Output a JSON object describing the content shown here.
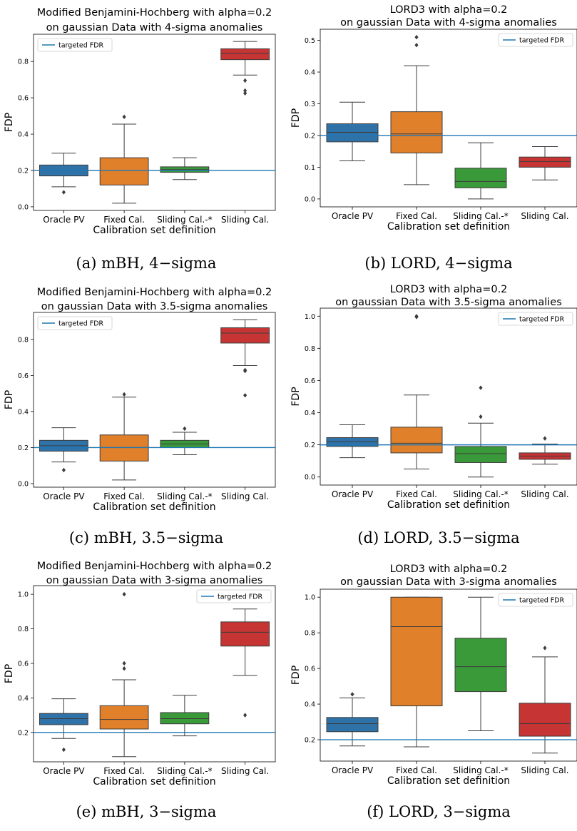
{
  "figure": {
    "panel_captions": [
      "(a) mBH, 4−sigma",
      "(b) LORD, 4−sigma",
      "(c) mBH, 3.5−sigma",
      "(d) LORD, 3.5−sigma",
      "(e) mBH, 3−sigma",
      "(f) LORD, 3−sigma"
    ]
  },
  "colors": {
    "Oracle PV": "#2f72a8",
    "Fixed Cal.": "#e0802b",
    "Sliding Cal.-*": "#3a9a3a",
    "Sliding Cal.": "#c63434",
    "target_line": "#1f77b4",
    "box_edge": "#3c3c3c"
  },
  "chart_data": [
    {
      "type": "box",
      "title": [
        "Modified Benjamini-Hochberg with alpha=0.2",
        "on gaussian Data with 4-sigma anomalies"
      ],
      "xlabel": "Calibration set definition",
      "ylabel": "FDP",
      "categories": [
        "Oracle PV",
        "Fixed Cal.",
        "Sliding Cal.-*",
        "Sliding Cal."
      ],
      "ylim": [
        -0.02,
        0.95
      ],
      "yticks": [
        0.0,
        0.2,
        0.4,
        0.6,
        0.8
      ],
      "ytick_labels": [
        "0.0",
        "0.2",
        "0.4",
        "0.6",
        "0.8"
      ],
      "reference_line": 0.2,
      "legend": {
        "label": "targeted FDR",
        "position": "top-left"
      },
      "boxes": [
        {
          "whislo": 0.11,
          "q1": 0.17,
          "med": 0.2,
          "q3": 0.23,
          "whishi": 0.295,
          "fliers": [
            0.08
          ]
        },
        {
          "whislo": 0.02,
          "q1": 0.12,
          "med": 0.2,
          "q3": 0.27,
          "whishi": 0.455,
          "fliers": [
            0.495
          ]
        },
        {
          "whislo": 0.15,
          "q1": 0.19,
          "med": 0.205,
          "q3": 0.22,
          "whishi": 0.27,
          "fliers": []
        },
        {
          "whislo": 0.725,
          "q1": 0.81,
          "med": 0.845,
          "q3": 0.87,
          "whishi": 0.91,
          "fliers": [
            0.695,
            0.64,
            0.625
          ]
        }
      ]
    },
    {
      "type": "box",
      "title": [
        "LORD3 with alpha=0.2",
        "on gaussian Data with 4-sigma anomalies"
      ],
      "xlabel": "Calibration set definition",
      "ylabel": "FDP",
      "categories": [
        "Oracle PV",
        "Fixed Cal.",
        "Sliding Cal.-*",
        "Sliding Cal."
      ],
      "ylim": [
        -0.025,
        0.535
      ],
      "yticks": [
        0.0,
        0.1,
        0.2,
        0.3,
        0.4,
        0.5
      ],
      "ytick_labels": [
        "0.0",
        "0.1",
        "0.2",
        "0.3",
        "0.4",
        "0.5"
      ],
      "reference_line": 0.2,
      "legend": {
        "label": "targeted FDR",
        "position": "top-right"
      },
      "boxes": [
        {
          "whislo": 0.12,
          "q1": 0.18,
          "med": 0.21,
          "q3": 0.237,
          "whishi": 0.305,
          "fliers": []
        },
        {
          "whislo": 0.045,
          "q1": 0.145,
          "med": 0.205,
          "q3": 0.275,
          "whishi": 0.42,
          "fliers": [
            0.485,
            0.51
          ]
        },
        {
          "whislo": 0.0,
          "q1": 0.035,
          "med": 0.055,
          "q3": 0.097,
          "whishi": 0.177,
          "fliers": []
        },
        {
          "whislo": 0.06,
          "q1": 0.1,
          "med": 0.118,
          "q3": 0.132,
          "whishi": 0.165,
          "fliers": []
        }
      ]
    },
    {
      "type": "box",
      "title": [
        "Modified Benjamini-Hochberg with alpha=0.2",
        "on gaussian Data with 3.5-sigma anomalies"
      ],
      "xlabel": "Calibration set definition",
      "ylabel": "FDP",
      "categories": [
        "Oracle PV",
        "Fixed Cal.",
        "Sliding Cal.-*",
        "Sliding Cal."
      ],
      "ylim": [
        -0.02,
        0.95
      ],
      "yticks": [
        0.0,
        0.2,
        0.4,
        0.6,
        0.8
      ],
      "ytick_labels": [
        "0.0",
        "0.2",
        "0.4",
        "0.6",
        "0.8"
      ],
      "reference_line": 0.2,
      "legend": {
        "label": "targeted FDR",
        "position": "top-left"
      },
      "boxes": [
        {
          "whislo": 0.12,
          "q1": 0.18,
          "med": 0.21,
          "q3": 0.24,
          "whishi": 0.31,
          "fliers": [
            0.075
          ]
        },
        {
          "whislo": 0.02,
          "q1": 0.125,
          "med": 0.2,
          "q3": 0.27,
          "whishi": 0.48,
          "fliers": [
            0.495
          ]
        },
        {
          "whislo": 0.16,
          "q1": 0.2,
          "med": 0.22,
          "q3": 0.24,
          "whishi": 0.285,
          "fliers": [
            0.305
          ]
        },
        {
          "whislo": 0.655,
          "q1": 0.78,
          "med": 0.835,
          "q3": 0.865,
          "whishi": 0.91,
          "fliers": [
            0.63,
            0.625,
            0.49
          ]
        }
      ]
    },
    {
      "type": "box",
      "title": [
        "LORD3 with alpha=0.2",
        "on gaussian Data with 3.5-sigma anomalies"
      ],
      "xlabel": "Calibration set definition",
      "ylabel": "FDP",
      "categories": [
        "Oracle PV",
        "Fixed Cal.",
        "Sliding Cal.-*",
        "Sliding Cal."
      ],
      "ylim": [
        -0.05,
        1.05
      ],
      "yticks": [
        0.0,
        0.2,
        0.4,
        0.6,
        0.8,
        1.0
      ],
      "ytick_labels": [
        "0.0",
        "0.2",
        "0.4",
        "0.6",
        "0.8",
        "1.0"
      ],
      "reference_line": 0.2,
      "legend": {
        "label": "targeted FDR",
        "position": "top-right"
      },
      "boxes": [
        {
          "whislo": 0.12,
          "q1": 0.19,
          "med": 0.22,
          "q3": 0.245,
          "whishi": 0.325,
          "fliers": []
        },
        {
          "whislo": 0.05,
          "q1": 0.15,
          "med": 0.21,
          "q3": 0.31,
          "whishi": 0.51,
          "fliers": [
            0.995,
            1.0
          ]
        },
        {
          "whislo": 0.0,
          "q1": 0.09,
          "med": 0.145,
          "q3": 0.19,
          "whishi": 0.335,
          "fliers": [
            0.375,
            0.555
          ]
        },
        {
          "whislo": 0.08,
          "q1": 0.11,
          "med": 0.13,
          "q3": 0.15,
          "whishi": 0.205,
          "fliers": [
            0.24
          ]
        }
      ]
    },
    {
      "type": "box",
      "title": [
        "Modified Benjamini-Hochberg with alpha=0.2",
        "on gaussian Data with 3-sigma anomalies"
      ],
      "xlabel": "Calibration set definition",
      "ylabel": "FDP",
      "categories": [
        "Oracle PV",
        "Fixed Cal.",
        "Sliding Cal.-*",
        "Sliding Cal."
      ],
      "ylim": [
        0.03,
        1.05
      ],
      "yticks": [
        0.2,
        0.4,
        0.6,
        0.8,
        1.0
      ],
      "ytick_labels": [
        "0.2",
        "0.4",
        "0.6",
        "0.8",
        "1.0"
      ],
      "reference_line": 0.2,
      "legend": {
        "label": "targeted FDR",
        "position": "top-right"
      },
      "boxes": [
        {
          "whislo": 0.165,
          "q1": 0.245,
          "med": 0.28,
          "q3": 0.31,
          "whishi": 0.395,
          "fliers": [
            0.1
          ]
        },
        {
          "whislo": 0.06,
          "q1": 0.22,
          "med": 0.275,
          "q3": 0.355,
          "whishi": 0.505,
          "fliers": [
            0.57,
            0.6,
            1.0
          ]
        },
        {
          "whislo": 0.18,
          "q1": 0.25,
          "med": 0.28,
          "q3": 0.315,
          "whishi": 0.415,
          "fliers": []
        },
        {
          "whislo": 0.53,
          "q1": 0.7,
          "med": 0.78,
          "q3": 0.84,
          "whishi": 0.915,
          "fliers": [
            0.3
          ]
        }
      ]
    },
    {
      "type": "box",
      "title": [
        "LORD3 with alpha=0.2",
        "on gaussian Data with 3-sigma anomalies"
      ],
      "xlabel": "Calibration set definition",
      "ylabel": "FDP",
      "categories": [
        "Oracle PV",
        "Fixed Cal.",
        "Sliding Cal.-*",
        "Sliding Cal."
      ],
      "ylim": [
        0.08,
        1.045
      ],
      "yticks": [
        0.2,
        0.4,
        0.6,
        0.8,
        1.0
      ],
      "ytick_labels": [
        "0.2",
        "0.4",
        "0.6",
        "0.8",
        "1.0"
      ],
      "reference_line": 0.2,
      "legend": {
        "label": "targeted FDR",
        "position": "top-right"
      },
      "boxes": [
        {
          "whislo": 0.165,
          "q1": 0.245,
          "med": 0.29,
          "q3": 0.325,
          "whishi": 0.435,
          "fliers": [
            0.455
          ]
        },
        {
          "whislo": 0.16,
          "q1": 0.39,
          "med": 0.835,
          "q3": 1.0,
          "whishi": 1.0,
          "fliers": []
        },
        {
          "whislo": 0.25,
          "q1": 0.47,
          "med": 0.61,
          "q3": 0.77,
          "whishi": 1.0,
          "fliers": []
        },
        {
          "whislo": 0.125,
          "q1": 0.22,
          "med": 0.29,
          "q3": 0.405,
          "whishi": 0.665,
          "fliers": [
            0.715
          ]
        }
      ]
    }
  ]
}
